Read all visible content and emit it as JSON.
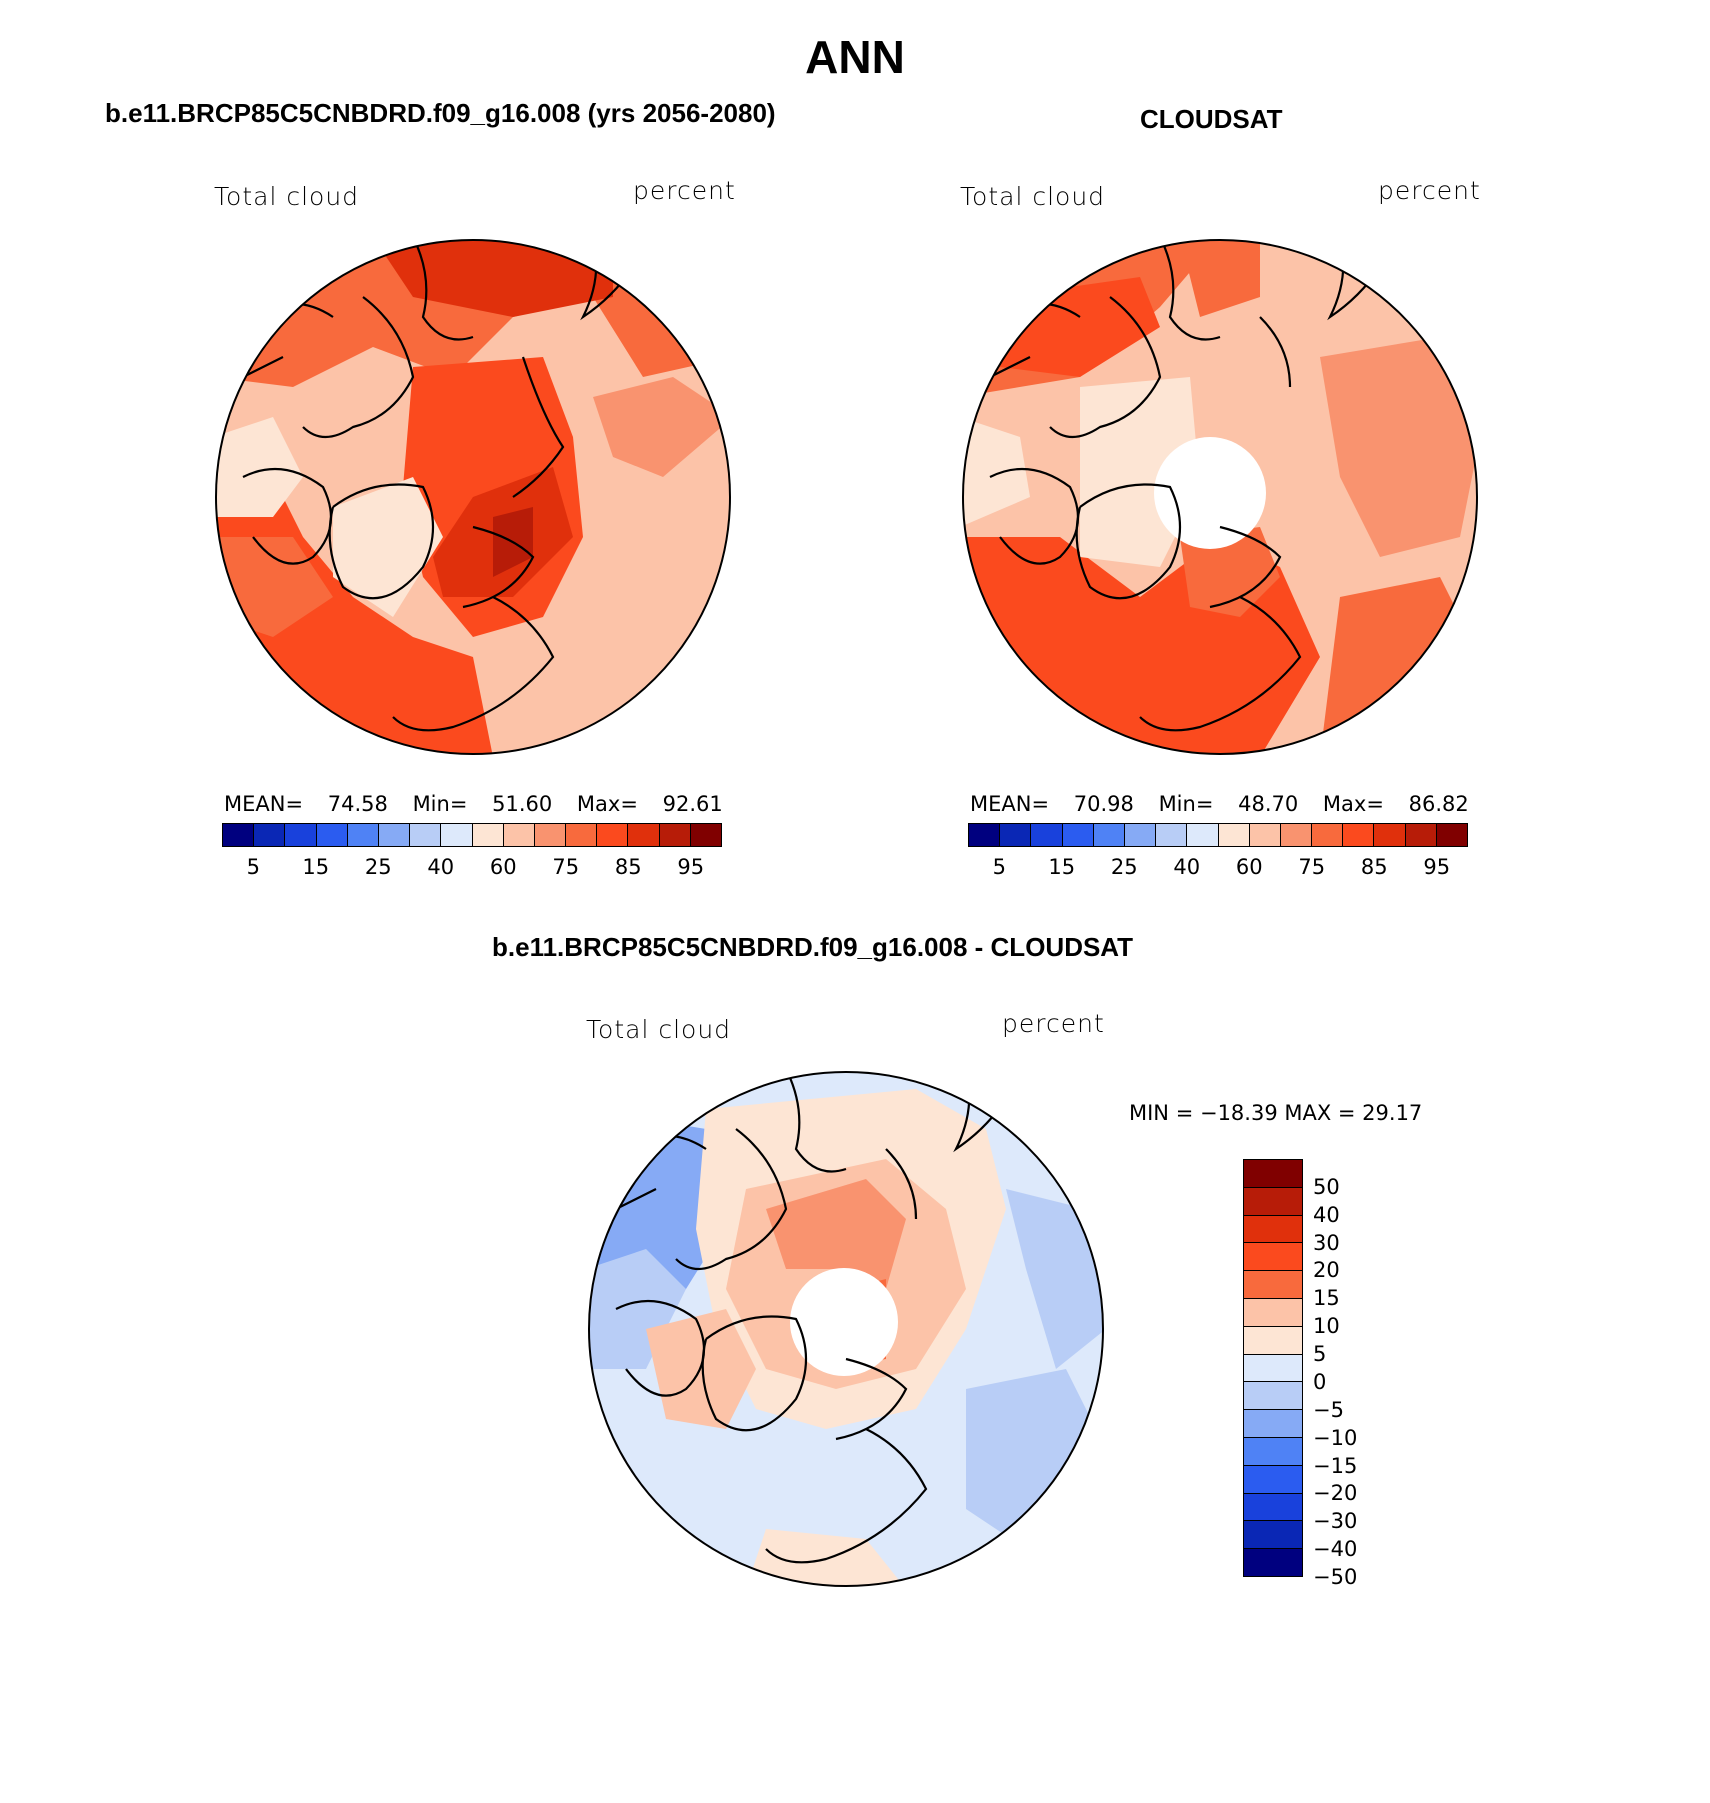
{
  "title": "ANN",
  "panels": {
    "model": {
      "title": "b.e11.BRCP85C5CNBDRD.f09_g16.008 (yrs 2056-2080)",
      "left_label": "Total cloud",
      "right_label": "percent",
      "mean_label": "MEAN=",
      "mean_value": "74.58",
      "min_label": "Min=",
      "min_value": "51.60",
      "max_label": "Max=",
      "max_value": "92.61"
    },
    "obs": {
      "title": "CLOUDSAT",
      "left_label": "Total cloud",
      "right_label": "percent",
      "mean_label": "MEAN=",
      "mean_value": "70.98",
      "min_label": "Min=",
      "min_value": "48.70",
      "max_label": "Max=",
      "max_value": "86.82"
    },
    "diff": {
      "title": "b.e11.BRCP85C5CNBDRD.f09_g16.008 - CLOUDSAT",
      "left_label": "Total cloud",
      "right_label": "percent",
      "minmax_text": "MIN = −18.39 MAX =   29.17"
    }
  },
  "colorbar_abs": {
    "colors": [
      "#00007f",
      "#0a27b5",
      "#1941dc",
      "#2b5cf0",
      "#4f82f5",
      "#86aaf5",
      "#b8cdf6",
      "#dde9fb",
      "#fde5d4",
      "#fcc3a8",
      "#f9936f",
      "#f86a3d",
      "#fb4a1e",
      "#e0300c",
      "#b71c08",
      "#800000"
    ],
    "labels": [
      "5",
      "15",
      "25",
      "40",
      "60",
      "75",
      "85",
      "95"
    ]
  },
  "colorbar_diff": {
    "colors": [
      "#800000",
      "#b71c08",
      "#e0300c",
      "#fb4a1e",
      "#f86a3d",
      "#fcc3a8",
      "#fde5d4",
      "#dde9fb",
      "#b8cdf6",
      "#86aaf5",
      "#4f82f5",
      "#2b5cf0",
      "#1941dc",
      "#0a27b5",
      "#00007f"
    ],
    "labels": [
      "50",
      "40",
      "30",
      "20",
      "15",
      "10",
      "5",
      "0",
      "−5",
      "−10",
      "−15",
      "−20",
      "−30",
      "−40",
      "−50"
    ]
  }
}
